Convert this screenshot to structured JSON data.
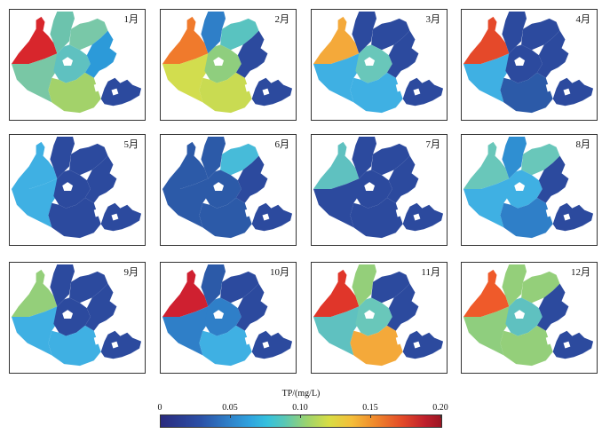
{
  "colors": {
    "c0": "#2c4a9e",
    "c1": "#2f8fd2",
    "c2": "#3fb0e3",
    "c3": "#69c7ba",
    "c4": "#94cf7a",
    "c5": "#b8d85a",
    "c6": "#d9e04a",
    "c7": "#f4a93a",
    "c8": "#f07a2c",
    "c9": "#e0362a",
    "c10": "#cf2030"
  },
  "panels": [
    {
      "label": "1月",
      "colors": {
        "nw": "#d8262c",
        "n": "#6cc3ad",
        "ne": "#79c8a8",
        "w": "#79c7a5",
        "c": "#5fc1c0",
        "e": "#2c9ad9",
        "s": "#a3d26a",
        "se": "#2c4a9e"
      }
    },
    {
      "label": "2月",
      "colors": {
        "nw": "#f07a2c",
        "n": "#2f7fc8",
        "ne": "#59c3c0",
        "w": "#d2dd4e",
        "c": "#8fce7e",
        "e": "#2c4a9e",
        "s": "#c9db52",
        "se": "#2c4a9e"
      }
    },
    {
      "label": "3月",
      "colors": {
        "nw": "#f4a93a",
        "n": "#2c4a9e",
        "ne": "#2c4a9e",
        "w": "#3fb0e3",
        "c": "#69c7ba",
        "e": "#2c4a9e",
        "s": "#3fb0e3",
        "se": "#2c4a9e"
      }
    },
    {
      "label": "4月",
      "colors": {
        "nw": "#e5492a",
        "n": "#2c4a9e",
        "ne": "#2c4a9e",
        "w": "#3fb0e3",
        "c": "#2c4a9e",
        "e": "#2c4a9e",
        "s": "#2c5aa8",
        "se": "#2c4a9e"
      }
    },
    {
      "label": "5月",
      "colors": {
        "nw": "#3fb0e3",
        "n": "#2c4a9e",
        "ne": "#2c4a9e",
        "w": "#3fb0e3",
        "c": "#2c4a9e",
        "e": "#2c4a9e",
        "s": "#2c4a9e",
        "se": "#2c4a9e"
      }
    },
    {
      "label": "6月",
      "colors": {
        "nw": "#2c5aa8",
        "n": "#2c5aa8",
        "ne": "#47bbd9",
        "w": "#2c5aa8",
        "c": "#2c5aa8",
        "e": "#2c4a9e",
        "s": "#2c5aa8",
        "se": "#2c4a9e"
      }
    },
    {
      "label": "7月",
      "colors": {
        "nw": "#5fc1c0",
        "n": "#2c4a9e",
        "ne": "#2c4a9e",
        "w": "#2c4a9e",
        "c": "#2c4a9e",
        "e": "#2c4a9e",
        "s": "#2c4a9e",
        "se": "#2c4a9e"
      }
    },
    {
      "label": "8月",
      "colors": {
        "nw": "#69c7ba",
        "n": "#2f8fd2",
        "ne": "#69c7ba",
        "w": "#3fb0e3",
        "c": "#3fb0e3",
        "e": "#2c4a9e",
        "s": "#2f7fc8",
        "se": "#2c4a9e"
      }
    },
    {
      "label": "9月",
      "colors": {
        "nw": "#94cf7a",
        "n": "#2c4a9e",
        "ne": "#2c4a9e",
        "w": "#3fb0e3",
        "c": "#2c4a9e",
        "e": "#2c4a9e",
        "s": "#3fb0e3",
        "se": "#2c4a9e"
      }
    },
    {
      "label": "10月",
      "colors": {
        "nw": "#cf2030",
        "n": "#2c5aa8",
        "ne": "#2c4a9e",
        "w": "#2f7fc8",
        "c": "#2f7fc8",
        "e": "#2c4a9e",
        "s": "#3fb0e3",
        "se": "#2c4a9e"
      }
    },
    {
      "label": "11月",
      "colors": {
        "nw": "#e0362a",
        "n": "#94cf7a",
        "ne": "#2c4a9e",
        "w": "#5fc1c0",
        "c": "#69c7ba",
        "e": "#2c4a9e",
        "s": "#f4a93a",
        "se": "#2c4a9e"
      }
    },
    {
      "label": "12月",
      "colors": {
        "nw": "#ef5a2a",
        "n": "#94cf7a",
        "ne": "#94cf7a",
        "w": "#8fce7e",
        "c": "#5fc1c0",
        "e": "#2c4a9e",
        "s": "#94cf7a",
        "se": "#2c4a9e"
      }
    }
  ],
  "legend": {
    "title": "TP/(mg/L)",
    "ticks": [
      "0",
      "0.05",
      "0.10",
      "0.15",
      "0.20"
    ],
    "tick_values": [
      0,
      0.05,
      0.1,
      0.15,
      0.2
    ],
    "range": [
      0,
      0.2
    ]
  }
}
